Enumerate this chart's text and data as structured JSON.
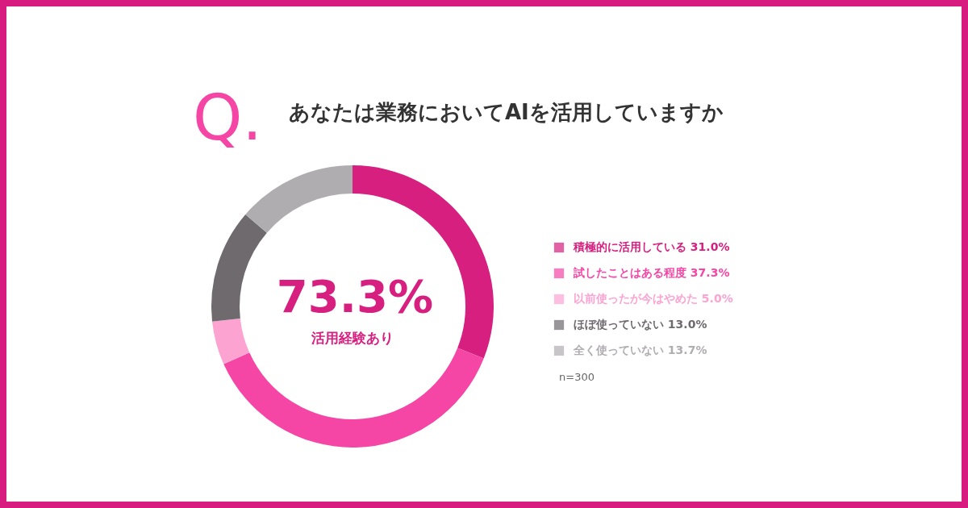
{
  "chart_data": {
    "type": "donut",
    "title": "あなたは業務においてAIを活用していますか",
    "categories": [
      "積極的に活用している",
      "試したことはある程度",
      "以前使ったが今はやめた",
      "ほぼ使っていない",
      "全く使っていない"
    ],
    "values": [
      31.0,
      37.3,
      5.0,
      13.0,
      13.7
    ],
    "value_labels": [
      "31.0%",
      "37.3%",
      "5.0%",
      "13.0%",
      "13.7%"
    ],
    "colors": [
      "#d61f7f",
      "#f545a5",
      "#fca3d2",
      "#6e6a6e",
      "#b0adb1"
    ],
    "legend": "right",
    "annotations": [
      "Q.",
      "73.3%",
      "活用経験あり",
      "n=300"
    ]
  }
}
